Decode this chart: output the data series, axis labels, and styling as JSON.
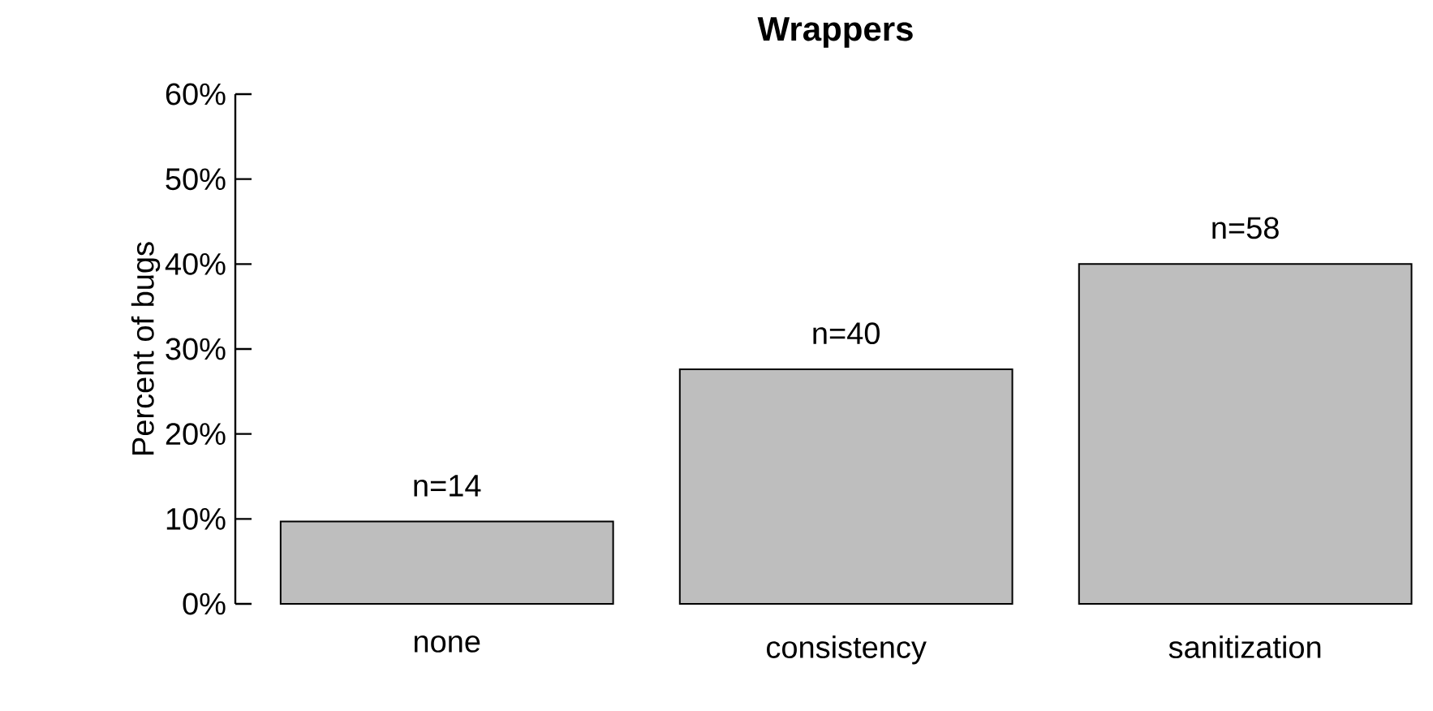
{
  "chart_data": {
    "type": "bar",
    "title": "Wrappers",
    "ylabel": "Percent of bugs",
    "categories": [
      "none",
      "consistency",
      "sanitization"
    ],
    "values": [
      9.7,
      27.6,
      40.0
    ],
    "annotations": [
      {
        "text": "n=14",
        "x": "none",
        "y": 9.7
      },
      {
        "text": "n=40",
        "x": "consistency",
        "y": 27.6
      },
      {
        "text": "n=58",
        "x": "sanitization",
        "y": 40.0
      }
    ],
    "color": "#bebebe",
    "ylim": [
      0,
      60
    ],
    "yticks": [
      {
        "value": 0,
        "label": "0%"
      },
      {
        "value": 10,
        "label": "10%"
      },
      {
        "value": 20,
        "label": "20%"
      },
      {
        "value": 30,
        "label": "30%"
      },
      {
        "value": 40,
        "label": "40%"
      },
      {
        "value": 50,
        "label": "50%"
      },
      {
        "value": 60,
        "label": "60%"
      }
    ],
    "grid": false
  }
}
